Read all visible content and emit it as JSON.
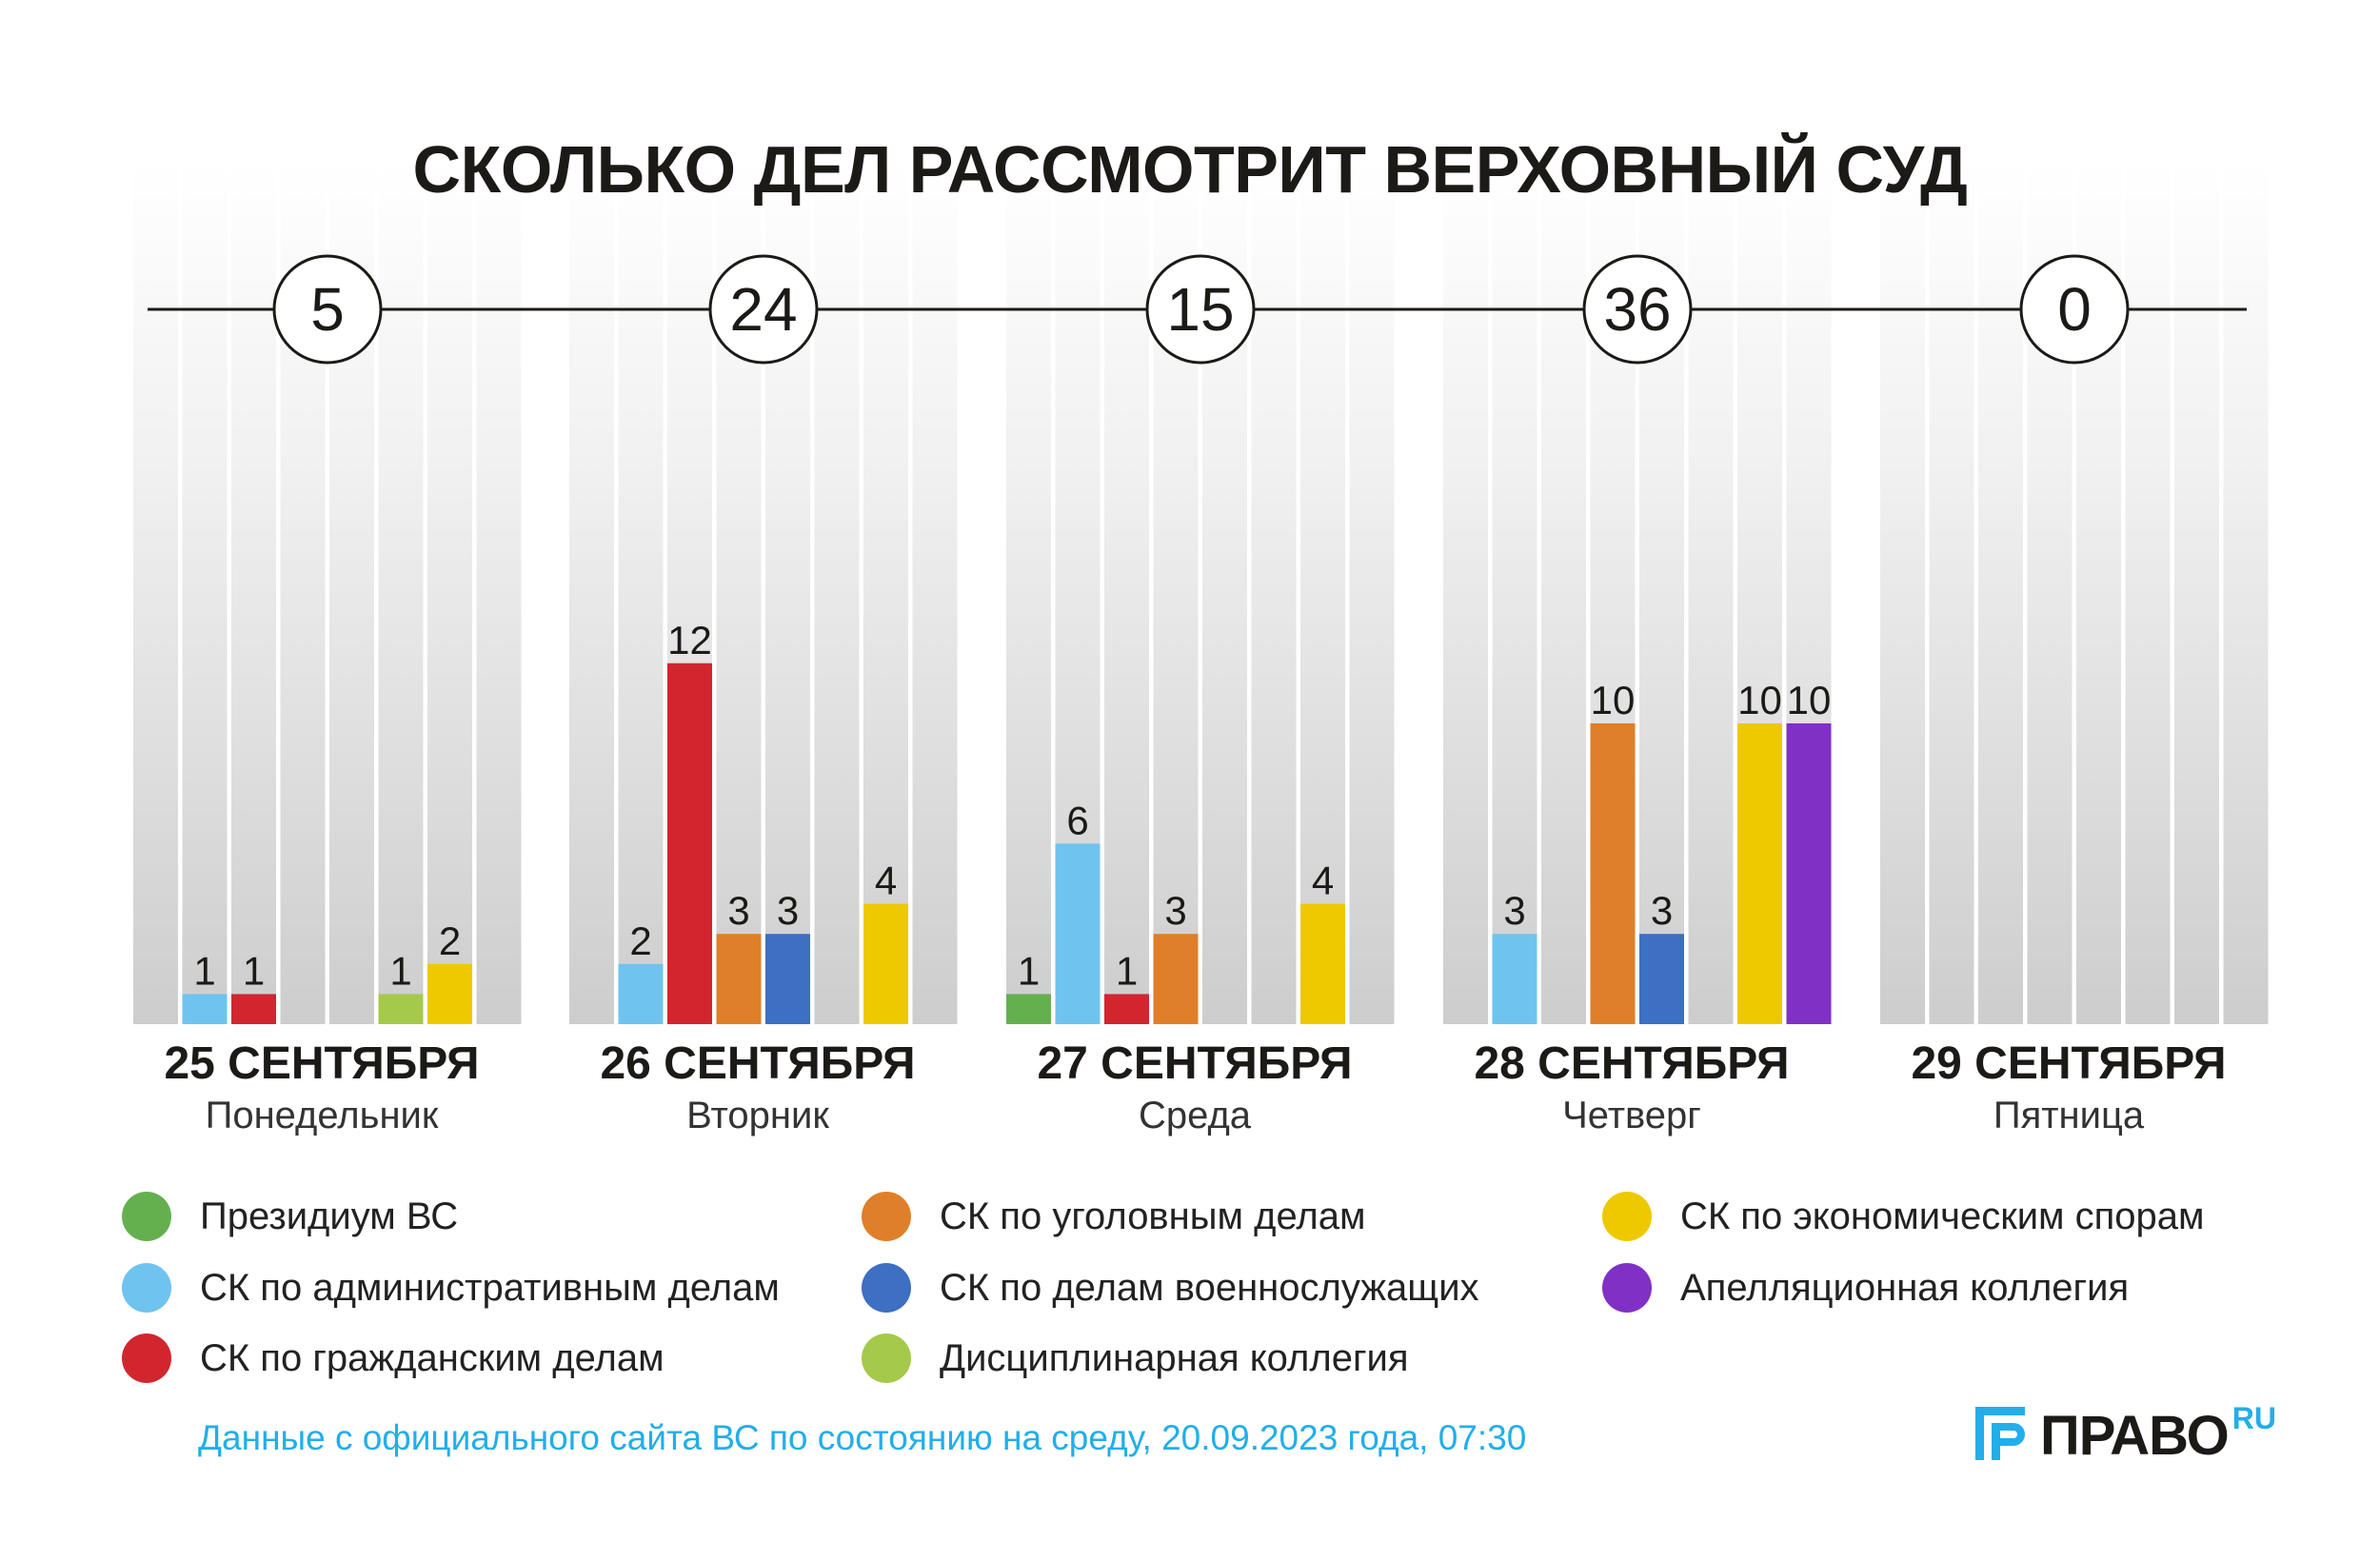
{
  "title": "СКОЛЬКО ДЕЛ РАССМОТРИТ ВЕРХОВНЫЙ СУД",
  "chart_data": {
    "type": "bar",
    "title": "СКОЛЬКО ДЕЛ РАССМОТРИТ ВЕРХОВНЫЙ СУД",
    "ylim": [
      0,
      36
    ],
    "series_names": [
      "Президиум ВС",
      "СК по административным делам",
      "СК по гражданским делам",
      "СК по уголовным делам",
      "СК по делам военнослужащих",
      "Дисциплинарная коллегия",
      "СК по экономическим спорам",
      "Апелляционная коллегия"
    ],
    "colors": [
      "#64b04f",
      "#6fc3ef",
      "#d2262f",
      "#df7f29",
      "#3d6fc2",
      "#a5c94b",
      "#eec900",
      "#8130c6"
    ],
    "days": [
      {
        "date": "25 СЕНТЯБРЯ",
        "weekday": "Понедельник",
        "total": "5",
        "values": [
          0,
          1,
          1,
          0,
          0,
          1,
          2,
          0
        ]
      },
      {
        "date": "26 СЕНТЯБРЯ",
        "weekday": "Вторник",
        "total": "24",
        "values": [
          0,
          2,
          12,
          3,
          3,
          0,
          4,
          0
        ]
      },
      {
        "date": "27 СЕНТЯБРЯ",
        "weekday": "Среда",
        "total": "15",
        "values": [
          1,
          6,
          1,
          3,
          0,
          0,
          4,
          0
        ]
      },
      {
        "date": "28 СЕНТЯБРЯ",
        "weekday": "Четверг",
        "total": "36",
        "values": [
          0,
          3,
          0,
          10,
          3,
          0,
          10,
          10
        ]
      },
      {
        "date": "29 СЕНТЯБРЯ",
        "weekday": "Пятница",
        "total": "0",
        "values": [
          0,
          0,
          0,
          0,
          0,
          0,
          0,
          0
        ]
      }
    ]
  },
  "legend": {
    "items": [
      {
        "label": "Президиум ВС",
        "color": "#64b04f"
      },
      {
        "label": "СК по административным делам",
        "color": "#6fc3ef"
      },
      {
        "label": "СК по гражданским делам",
        "color": "#d2262f"
      },
      {
        "label": "СК по уголовным делам",
        "color": "#df7f29"
      },
      {
        "label": "СК по делам военнослужащих",
        "color": "#3d6fc2"
      },
      {
        "label": "Дисциплинарная коллегия",
        "color": "#a5c94b"
      },
      {
        "label": "СК по экономическим спорам",
        "color": "#eec900"
      },
      {
        "label": "Апелляционная коллегия",
        "color": "#8130c6"
      }
    ]
  },
  "source": "Данные с официального сайта ВС по состоянию на среду, 20.09.2023 года, 07:30",
  "logo": {
    "main": "ПРАВО",
    "suffix": "RU"
  }
}
